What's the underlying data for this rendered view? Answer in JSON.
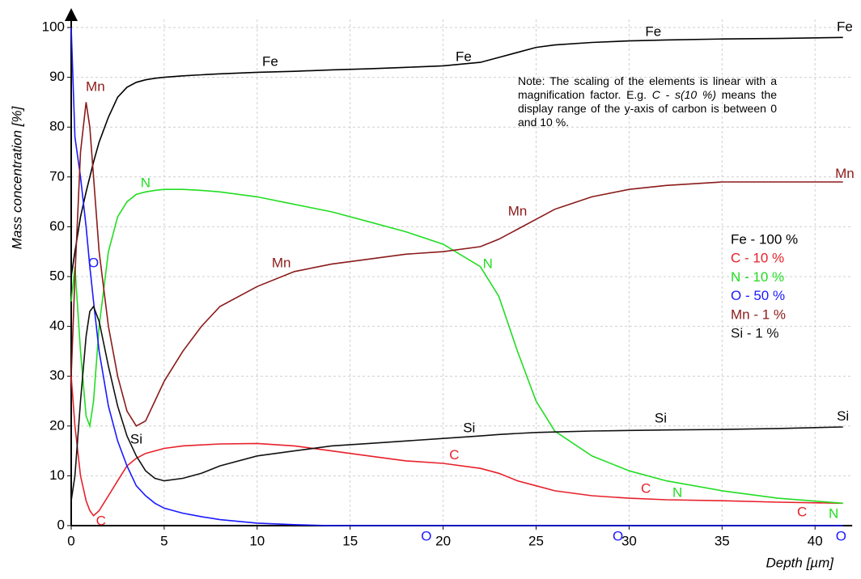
{
  "chart_data": {
    "type": "line",
    "y_label": "Mass concentration [%]",
    "x_label": "Depth [µm]",
    "note": [
      "Note: The scaling of the elements is linear with a magnification factor. E.g. ",
      "C - s(10 %)",
      " means the display range of the y-axis of carbon is between 0 and 10 %."
    ],
    "xlim": [
      0,
      42
    ],
    "ylim": [
      0,
      100
    ],
    "xticks": [
      0,
      5,
      10,
      15,
      20,
      25,
      30,
      35,
      40
    ],
    "yticks": [
      0,
      10,
      20,
      30,
      40,
      50,
      60,
      70,
      80,
      90,
      100
    ],
    "grid": true,
    "legend": "right",
    "x": [
      0,
      0.2,
      0.5,
      0.8,
      1,
      1.2,
      1.5,
      2,
      2.5,
      3,
      3.5,
      4,
      4.5,
      5,
      6,
      7,
      8,
      10,
      12,
      14,
      16,
      18,
      20,
      22,
      23,
      24,
      25,
      26,
      28,
      30,
      32,
      35,
      38,
      41.5
    ],
    "series": [
      {
        "name": "Fe - 100 %",
        "color": "#000000",
        "values": [
          50,
          55,
          62,
          67,
          70,
          73,
          77,
          82,
          86,
          88,
          89,
          89.5,
          89.8,
          90,
          90.3,
          90.5,
          90.7,
          91,
          91.2,
          91.5,
          91.7,
          92,
          92.3,
          93,
          94,
          95,
          96,
          96.5,
          97,
          97.3,
          97.5,
          97.7,
          97.8,
          98
        ]
      },
      {
        "name": "C - 10 %",
        "color": "#e8202a",
        "values": [
          30,
          20,
          10,
          5,
          3,
          2,
          3,
          6,
          9,
          12,
          13.5,
          14.5,
          15,
          15.5,
          16,
          16.2,
          16.4,
          16.5,
          16,
          15,
          14,
          13,
          12.5,
          11.5,
          10.5,
          9,
          8,
          7,
          6,
          5.5,
          5.2,
          5,
          4.7,
          4.5
        ]
      },
      {
        "name": "N - 10 %",
        "color": "#22dd22",
        "values": [
          45,
          52,
          35,
          22,
          20,
          25,
          40,
          55,
          62,
          65,
          66.5,
          67,
          67.3,
          67.5,
          67.5,
          67.3,
          67,
          66,
          64.5,
          63,
          61,
          59,
          56.5,
          52,
          46,
          35,
          25,
          19,
          14,
          11,
          9,
          7,
          5.5,
          4.5
        ]
      },
      {
        "name": "O - 50 %",
        "color": "#1a1aff",
        "values": [
          100,
          78,
          70,
          60,
          52,
          45,
          35,
          24,
          17,
          12,
          8,
          6,
          4.5,
          3.5,
          2.5,
          1.8,
          1.2,
          0.5,
          0.2,
          0,
          0,
          0,
          0,
          0,
          0,
          0,
          0,
          0,
          0,
          0,
          0,
          0,
          0,
          0
        ]
      },
      {
        "name": "Mn - 1 %",
        "color": "#8b1a1a",
        "values": [
          30,
          50,
          75,
          85,
          80,
          70,
          55,
          40,
          30,
          23,
          20,
          21,
          25,
          29,
          35,
          40,
          44,
          48,
          51,
          52.5,
          53.5,
          54.5,
          55,
          56,
          57.5,
          59.5,
          61.5,
          63.5,
          66,
          67.5,
          68.3,
          69,
          69,
          69
        ]
      },
      {
        "name": "Si - 1 %",
        "color": "#111111",
        "values": [
          5,
          10,
          25,
          38,
          43,
          44,
          41,
          32,
          24,
          18,
          14,
          11,
          9.5,
          9,
          9.5,
          10.5,
          12,
          14,
          15,
          16,
          16.5,
          17,
          17.5,
          18,
          18.3,
          18.5,
          18.7,
          18.8,
          19,
          19.1,
          19.2,
          19.3,
          19.5,
          19.8
        ]
      }
    ],
    "annotations": [
      {
        "text": "Fe",
        "x": 10.7,
        "y": 93,
        "color": "#000000"
      },
      {
        "text": "Fe",
        "x": 21.1,
        "y": 94,
        "color": "#000000"
      },
      {
        "text": "Fe",
        "x": 31.3,
        "y": 99,
        "color": "#000000"
      },
      {
        "text": "Fe",
        "x": 41.6,
        "y": 100,
        "color": "#000000"
      },
      {
        "text": "Mn",
        "x": 1.3,
        "y": 88,
        "color": "#8b1a1a"
      },
      {
        "text": "Mn",
        "x": 11.3,
        "y": 52.6,
        "color": "#8b1a1a"
      },
      {
        "text": "Mn",
        "x": 24,
        "y": 63,
        "color": "#8b1a1a"
      },
      {
        "text": "Mn",
        "x": 41.6,
        "y": 70.5,
        "color": "#8b1a1a"
      },
      {
        "text": "N",
        "x": 4,
        "y": 68.7,
        "color": "#22dd22"
      },
      {
        "text": "N",
        "x": 22.4,
        "y": 52.4,
        "color": "#22dd22"
      },
      {
        "text": "N",
        "x": 32.6,
        "y": 6.5,
        "color": "#22dd22"
      },
      {
        "text": "N",
        "x": 41,
        "y": 2.3,
        "color": "#22dd22"
      },
      {
        "text": "O",
        "x": 1.2,
        "y": 52.6,
        "color": "#1a1aff"
      },
      {
        "text": "O",
        "x": 19.1,
        "y": -2.3,
        "color": "#1a1aff"
      },
      {
        "text": "O",
        "x": 29.4,
        "y": -2.3,
        "color": "#1a1aff"
      },
      {
        "text": "O",
        "x": 41.4,
        "y": -2.3,
        "color": "#1a1aff"
      },
      {
        "text": "C",
        "x": 1.6,
        "y": 0.8,
        "color": "#e8202a"
      },
      {
        "text": "C",
        "x": 20.6,
        "y": 14,
        "color": "#e8202a"
      },
      {
        "text": "C",
        "x": 30.9,
        "y": 7.3,
        "color": "#e8202a"
      },
      {
        "text": "C",
        "x": 39.3,
        "y": 2.6,
        "color": "#e8202a"
      },
      {
        "text": "Si",
        "x": 3.5,
        "y": 17.2,
        "color": "#000000"
      },
      {
        "text": "Si",
        "x": 21.4,
        "y": 19.5,
        "color": "#000000"
      },
      {
        "text": "Si",
        "x": 31.7,
        "y": 21.4,
        "color": "#000000"
      },
      {
        "text": "Si",
        "x": 41.5,
        "y": 21.8,
        "color": "#000000"
      }
    ]
  }
}
